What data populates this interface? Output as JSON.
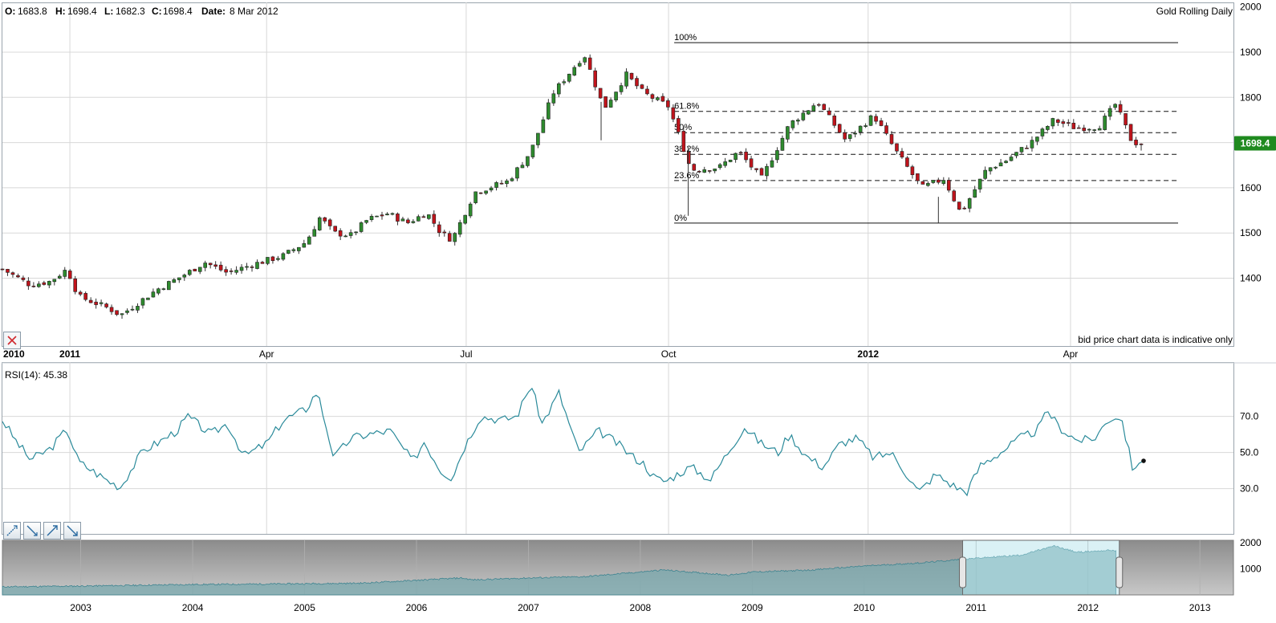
{
  "ohlc_bar": {
    "o_label": "O:",
    "o_value": "1683.8",
    "h_label": "H:",
    "h_value": "1698.4",
    "l_label": "L:",
    "l_value": "1682.3",
    "c_label": "C:",
    "c_value": "1698.4",
    "date_label": "Date:",
    "date_value": "8 Mar 2012"
  },
  "disclaimer": "bid price chart data is indicative only",
  "colors": {
    "up": "#2e8b2e",
    "down": "#c0141c",
    "rsi": "#2a8a9a",
    "grid": "#d8d8d8",
    "price_tag": "#1f8a1f"
  },
  "tools": [
    {
      "name": "trendline-up-tool",
      "icon": "trendline-up-icon"
    },
    {
      "name": "trendline-down-tool",
      "icon": "trendline-down-icon"
    },
    {
      "name": "arrow-up-tool",
      "icon": "arrow-up-icon"
    },
    {
      "name": "arrow-down-tool",
      "icon": "arrow-down-icon"
    }
  ],
  "chart_data": [
    {
      "type": "candlestick",
      "title": "Gold Rolling Daily",
      "frequency": "weekly candles",
      "last_price_tag": "1698.4",
      "x_tick_labels": [
        "2010",
        "2011",
        "Apr",
        "Jul",
        "Oct",
        "2012",
        "Apr"
      ],
      "bold_x_ticks": [
        "2010",
        "2011",
        "2012"
      ],
      "y_tick_labels": [
        "1400",
        "1500",
        "1600",
        "1700",
        "1800",
        "1900",
        "2000"
      ],
      "ylim": [
        1250,
        2010
      ],
      "grid": true,
      "fibonacci_retracement": {
        "high": 1921,
        "low": 1522,
        "levels": [
          {
            "label": "100%",
            "value": 1921,
            "style": "solid"
          },
          {
            "label": "61.8%",
            "value": 1769,
            "style": "dashed"
          },
          {
            "label": "50%",
            "value": 1722,
            "style": "dashed"
          },
          {
            "label": "38.2%",
            "value": 1674,
            "style": "dashed"
          },
          {
            "label": "23.6%",
            "value": 1616,
            "style": "dashed"
          },
          {
            "label": "0%",
            "value": 1522,
            "style": "solid"
          }
        ]
      },
      "candle_count": 220,
      "close_path": [
        [
          0,
          1420
        ],
        [
          10,
          1385
        ],
        [
          17,
          1393
        ],
        [
          23,
          1420
        ],
        [
          27,
          1360
        ],
        [
          38,
          1333
        ],
        [
          42,
          1318
        ],
        [
          55,
          1375
        ],
        [
          64,
          1405
        ],
        [
          72,
          1435
        ],
        [
          80,
          1412
        ],
        [
          90,
          1432
        ],
        [
          100,
          1450
        ],
        [
          108,
          1480
        ],
        [
          113,
          1535
        ],
        [
          118,
          1500
        ],
        [
          124,
          1495
        ],
        [
          130,
          1530
        ],
        [
          137,
          1543
        ],
        [
          144,
          1522
        ],
        [
          151,
          1545
        ],
        [
          156,
          1500
        ],
        [
          160,
          1485
        ],
        [
          168,
          1590
        ],
        [
          180,
          1615
        ],
        [
          188,
          1680
        ],
        [
          196,
          1810
        ],
        [
          207,
          1895
        ],
        [
          214,
          1775
        ],
        [
          222,
          1850
        ],
        [
          228,
          1810
        ],
        [
          237,
          1780
        ],
        [
          245,
          1640
        ],
        [
          255,
          1645
        ],
        [
          262,
          1680
        ],
        [
          270,
          1620
        ],
        [
          280,
          1740
        ],
        [
          290,
          1790
        ],
        [
          300,
          1705
        ],
        [
          310,
          1760
        ],
        [
          318,
          1680
        ],
        [
          327,
          1600
        ],
        [
          335,
          1620
        ],
        [
          341,
          1543
        ],
        [
          350,
          1640
        ],
        [
          357,
          1660
        ],
        [
          366,
          1700
        ],
        [
          374,
          1750
        ],
        [
          382,
          1732
        ],
        [
          390,
          1735
        ],
        [
          396,
          1785
        ],
        [
          402,
          1700
        ],
        [
          406,
          1698
        ]
      ]
    },
    {
      "type": "line",
      "title": "RSI(14): 45.38",
      "series": [
        {
          "name": "RSI(14)"
        }
      ],
      "y_tick_labels": [
        "30.0",
        "50.0",
        "70.0"
      ],
      "ylim": [
        5,
        100
      ],
      "grid": true,
      "last_value": 45.38,
      "path": [
        [
          0,
          68
        ],
        [
          5,
          56
        ],
        [
          10,
          46
        ],
        [
          17,
          52
        ],
        [
          23,
          63
        ],
        [
          27,
          45
        ],
        [
          34,
          38
        ],
        [
          38,
          34
        ],
        [
          42,
          31
        ],
        [
          50,
          51
        ],
        [
          56,
          56
        ],
        [
          62,
          62
        ],
        [
          66,
          70
        ],
        [
          74,
          60
        ],
        [
          80,
          66
        ],
        [
          86,
          48
        ],
        [
          94,
          55
        ],
        [
          100,
          68
        ],
        [
          108,
          74
        ],
        [
          112,
          84
        ],
        [
          118,
          47
        ],
        [
          124,
          58
        ],
        [
          130,
          60
        ],
        [
          138,
          62
        ],
        [
          146,
          45
        ],
        [
          150,
          56
        ],
        [
          156,
          40
        ],
        [
          160,
          36
        ],
        [
          164,
          52
        ],
        [
          170,
          70
        ],
        [
          178,
          68
        ],
        [
          183,
          70
        ],
        [
          188,
          88
        ],
        [
          192,
          66
        ],
        [
          198,
          83
        ],
        [
          205,
          50
        ],
        [
          212,
          62
        ],
        [
          218,
          56
        ],
        [
          224,
          48
        ],
        [
          228,
          44
        ],
        [
          232,
          36
        ],
        [
          236,
          34
        ],
        [
          240,
          38
        ],
        [
          245,
          42
        ],
        [
          252,
          35
        ],
        [
          258,
          50
        ],
        [
          264,
          64
        ],
        [
          270,
          55
        ],
        [
          276,
          50
        ],
        [
          280,
          60
        ],
        [
          286,
          48
        ],
        [
          292,
          42
        ],
        [
          298,
          55
        ],
        [
          304,
          58
        ],
        [
          310,
          47
        ],
        [
          316,
          50
        ],
        [
          320,
          42
        ],
        [
          326,
          28
        ],
        [
          332,
          38
        ],
        [
          338,
          32
        ],
        [
          343,
          28
        ],
        [
          348,
          43
        ],
        [
          356,
          51
        ],
        [
          362,
          58
        ],
        [
          368,
          62
        ],
        [
          372,
          73
        ],
        [
          376,
          64
        ],
        [
          382,
          57
        ],
        [
          388,
          57
        ],
        [
          394,
          69
        ],
        [
          398,
          70
        ],
        [
          402,
          42
        ],
        [
          406,
          45.38
        ]
      ]
    },
    {
      "type": "area",
      "title": "",
      "x_tick_labels": [
        "2003",
        "2004",
        "2005",
        "2006",
        "2007",
        "2008",
        "2009",
        "2010",
        "2011",
        "2012",
        "2013"
      ],
      "y_tick_labels": [
        "1000",
        "2000"
      ],
      "ylim": [
        0,
        2100
      ],
      "xlim": [
        2002.3,
        2013.3
      ],
      "selected_range": [
        "2010-11",
        "2012-03"
      ],
      "path": [
        [
          2002.3,
          310
        ],
        [
          2003,
          340
        ],
        [
          2004,
          400
        ],
        [
          2005,
          430
        ],
        [
          2005.5,
          450
        ],
        [
          2006,
          560
        ],
        [
          2006.4,
          650
        ],
        [
          2006.5,
          580
        ],
        [
          2007,
          650
        ],
        [
          2007.5,
          700
        ],
        [
          2008,
          880
        ],
        [
          2008.2,
          960
        ],
        [
          2008.8,
          760
        ],
        [
          2009,
          880
        ],
        [
          2009.5,
          950
        ],
        [
          2010,
          1110
        ],
        [
          2010.5,
          1230
        ],
        [
          2010.9,
          1380
        ],
        [
          2011,
          1410
        ],
        [
          2011.4,
          1530
        ],
        [
          2011.7,
          1880
        ],
        [
          2011.9,
          1640
        ],
        [
          2012.2,
          1720
        ],
        [
          2012.25,
          1700
        ]
      ]
    }
  ]
}
